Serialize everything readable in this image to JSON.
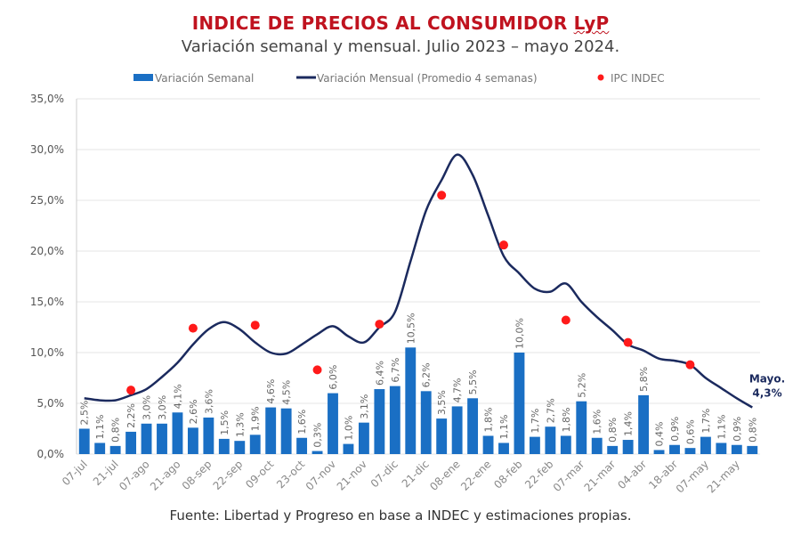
{
  "title_main": "INDICE DE PRECIOS AL CONSUMIDOR",
  "title_brand": "LyP",
  "subtitle": "Variación semanal y mensual. Julio 2023 – mayo 2024.",
  "source": "Fuente: Libertad y Progreso en base a INDEC y estimaciones propias.",
  "colors": {
    "bars": "#1a6fc4",
    "line": "#1b2a5e",
    "dots": "#ff1a1a",
    "title": "#c0131f"
  },
  "chart_data": {
    "type": "bar",
    "ylim": [
      0,
      35
    ],
    "yticks": [
      0,
      5,
      10,
      15,
      20,
      25,
      30,
      35
    ],
    "ytick_labels": [
      "0,0%",
      "5,0%",
      "10,0%",
      "15,0%",
      "20,0%",
      "25,0%",
      "30,0%",
      "35,0%"
    ],
    "grid": true,
    "legend_placement": "top",
    "xtick_labels": [
      "07-jul",
      "21-jul",
      "07-ago",
      "21-ago",
      "08-sep",
      "22-sep",
      "09-oct",
      "23-oct",
      "07-nov",
      "21-nov",
      "07-dic",
      "21-dic",
      "08-ene",
      "22-ene",
      "08-feb",
      "22-feb",
      "07-mar",
      "21-mar",
      "04-abr",
      "18-abr",
      "07-may",
      "21-may"
    ],
    "series": [
      {
        "name": "Variación Semanal",
        "type": "bar",
        "values": [
          2.5,
          1.1,
          0.8,
          2.2,
          3.0,
          3.0,
          4.1,
          2.6,
          3.6,
          1.5,
          1.3,
          1.9,
          4.6,
          4.5,
          1.6,
          0.3,
          6.0,
          1.0,
          3.1,
          6.4,
          6.7,
          10.5,
          6.2,
          3.5,
          4.7,
          5.5,
          1.8,
          1.1,
          10.0,
          1.7,
          2.7,
          1.8,
          5.2,
          1.6,
          0.8,
          1.4,
          5.8,
          0.4,
          0.9,
          0.6,
          1.7,
          1.1,
          0.9,
          0.8
        ],
        "labels": [
          "2,5%",
          "1,1%",
          "0,8%",
          "2,2%",
          "3,0%",
          "3,0%",
          "4,1%",
          "2,6%",
          "3,6%",
          "1,5%",
          "1,3%",
          "1,9%",
          "4,6%",
          "4,5%",
          "1,6%",
          "0,3%",
          "6,0%",
          "1,0%",
          "3,1%",
          "6,4%",
          "6,7%",
          "10,5%",
          "6,2%",
          "3,5%",
          "4,7%",
          "5,5%",
          "1,8%",
          "1,1%",
          "10,0%",
          "1,7%",
          "2,7%",
          "1,8%",
          "5,2%",
          "1,6%",
          "0,8%",
          "1,4%",
          "5,8%",
          "0,4%",
          "0,9%",
          "0,6%",
          "1,7%",
          "1,1%",
          "0,9%",
          "0,8%"
        ]
      },
      {
        "name": "Variación Mensual (Promedio 4 semanas)",
        "type": "line",
        "values": [
          5.5,
          5.3,
          5.3,
          5.8,
          6.4,
          7.6,
          9.0,
          10.8,
          12.3,
          13.0,
          12.3,
          11.0,
          10.0,
          9.9,
          10.8,
          11.8,
          12.6,
          11.6,
          11.0,
          12.5,
          14.0,
          19.0,
          24.0,
          27.0,
          29.5,
          27.5,
          23.5,
          19.5,
          17.8,
          16.3,
          16.0,
          16.8,
          15.0,
          13.5,
          12.2,
          10.8,
          10.2,
          9.4,
          9.2,
          8.8,
          7.5,
          6.5,
          5.5,
          4.6
        ]
      },
      {
        "name": "IPC INDEC",
        "type": "scatter",
        "points": [
          {
            "week": 3,
            "value": 6.3
          },
          {
            "week": 7,
            "value": 12.4
          },
          {
            "week": 11,
            "value": 12.7
          },
          {
            "week": 15,
            "value": 8.3
          },
          {
            "week": 19,
            "value": 12.8
          },
          {
            "week": 23,
            "value": 25.5
          },
          {
            "week": 27,
            "value": 20.6
          },
          {
            "week": 31,
            "value": 13.2
          },
          {
            "week": 35,
            "value": 11.0
          },
          {
            "week": 39,
            "value": 8.8
          }
        ]
      }
    ],
    "annotation": {
      "line1": "Mayo.",
      "line2": "4,3%"
    }
  }
}
